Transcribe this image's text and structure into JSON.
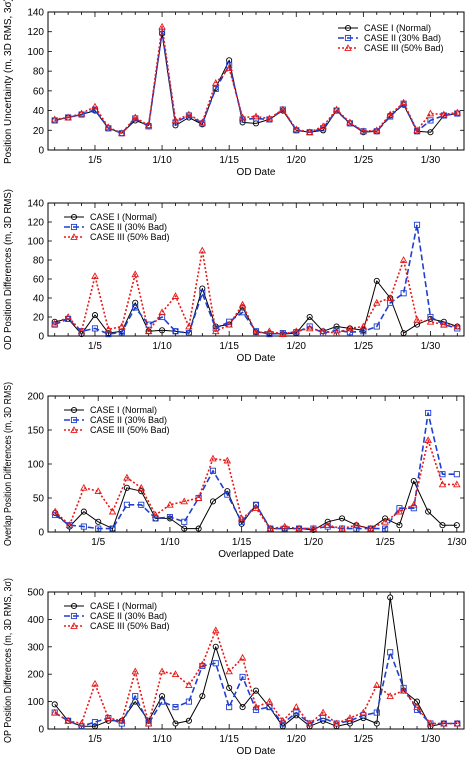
{
  "colors": {
    "case1": "#000000",
    "case2": "#1f3fd0",
    "case3": "#e81818",
    "axis": "#000000"
  },
  "chart_data": [
    {
      "type": "line",
      "title": "",
      "xlabel": "OD Date",
      "ylabel": "Position Uncertainty (m, 3D RMS, 3σ)",
      "xlim": [
        1.5,
        32.5
      ],
      "ylim": [
        0,
        140
      ],
      "yticks": [
        0,
        20,
        40,
        60,
        80,
        100,
        120,
        140
      ],
      "xticks": [
        5,
        10,
        15,
        20,
        25,
        30
      ],
      "xtick_labels": [
        "1/5",
        "1/10",
        "1/15",
        "1/20",
        "1/25",
        "1/30"
      ],
      "x": [
        2,
        3,
        4,
        5,
        6,
        7,
        8,
        9,
        10,
        11,
        12,
        13,
        14,
        15,
        16,
        17,
        18,
        19,
        20,
        21,
        22,
        23,
        24,
        25,
        26,
        27,
        28,
        29,
        30,
        31,
        32
      ],
      "legend_position": "top-right",
      "series": [
        {
          "name": "CASE I (Normal)",
          "style": "case1",
          "marker": "circle",
          "values": [
            30,
            33,
            36,
            40,
            22,
            17,
            30,
            25,
            118,
            25,
            33,
            26,
            63,
            91,
            28,
            27,
            31,
            40,
            20,
            18,
            20,
            40,
            27,
            18,
            19,
            35,
            46,
            19,
            18,
            35,
            37
          ]
        },
        {
          "name": "CASE II (30% Bad)",
          "style": "case2",
          "marker": "square",
          "values": [
            30,
            33,
            36,
            41,
            22,
            17,
            32,
            24,
            120,
            28,
            35,
            27,
            62,
            86,
            31,
            32,
            31,
            41,
            20,
            18,
            22,
            40,
            27,
            19,
            19,
            34,
            47,
            19,
            30,
            35,
            37
          ]
        },
        {
          "name": "CASE III (50% Bad)",
          "style": "case3",
          "marker": "triangle",
          "values": [
            31,
            33,
            37,
            44,
            23,
            17,
            33,
            25,
            125,
            30,
            36,
            28,
            68,
            83,
            33,
            34,
            32,
            41,
            21,
            18,
            24,
            41,
            28,
            19,
            20,
            36,
            48,
            20,
            37,
            36,
            38
          ]
        }
      ]
    },
    {
      "type": "line",
      "title": "",
      "xlabel": "OD Date",
      "ylabel": "OD Position Differences (m, 3D RMS)",
      "xlim": [
        1.5,
        32.5
      ],
      "ylim": [
        0,
        140
      ],
      "yticks": [
        0,
        20,
        40,
        60,
        80,
        100,
        120,
        140
      ],
      "xticks": [
        5,
        10,
        15,
        20,
        25,
        30
      ],
      "xtick_labels": [
        "1/5",
        "1/10",
        "1/15",
        "1/20",
        "1/25",
        "1/30"
      ],
      "x": [
        2,
        3,
        4,
        5,
        6,
        7,
        8,
        9,
        10,
        11,
        12,
        13,
        14,
        15,
        16,
        17,
        18,
        19,
        20,
        21,
        22,
        23,
        24,
        25,
        26,
        27,
        28,
        29,
        30,
        31,
        32
      ],
      "legend_position": "top-left",
      "series": [
        {
          "name": "CASE I (Normal)",
          "style": "case1",
          "marker": "circle",
          "values": [
            15,
            18,
            2,
            22,
            3,
            5,
            35,
            5,
            6,
            5,
            3,
            50,
            10,
            12,
            30,
            4,
            3,
            2,
            3,
            20,
            5,
            10,
            8,
            6,
            58,
            40,
            3,
            12,
            18,
            15,
            10
          ]
        },
        {
          "name": "CASE II (30% Bad)",
          "style": "case2",
          "marker": "square",
          "values": [
            12,
            18,
            5,
            8,
            2,
            4,
            30,
            12,
            20,
            5,
            3,
            45,
            8,
            15,
            25,
            5,
            2,
            3,
            4,
            10,
            3,
            6,
            4,
            5,
            10,
            35,
            45,
            117,
            20,
            12,
            8
          ]
        },
        {
          "name": "CASE III (50% Bad)",
          "style": "case3",
          "marker": "triangle",
          "values": [
            13,
            20,
            5,
            63,
            7,
            10,
            65,
            5,
            25,
            42,
            10,
            90,
            5,
            12,
            33,
            3,
            5,
            2,
            5,
            8,
            5,
            3,
            8,
            10,
            35,
            40,
            80,
            17,
            15,
            12,
            10
          ]
        }
      ]
    },
    {
      "type": "line",
      "title": "",
      "xlabel": "Overlapped Date",
      "ylabel": "Overlap Position Differences (m, 3D RMS)",
      "xlim": [
        1.5,
        30.5
      ],
      "ylim": [
        0,
        200
      ],
      "yticks": [
        0,
        50,
        100,
        150,
        200
      ],
      "xticks": [
        5,
        10,
        15,
        20,
        25,
        30
      ],
      "xtick_labels": [
        "1/5",
        "1/10",
        "1/15",
        "1/20",
        "1/25",
        "1/30"
      ],
      "x": [
        2,
        3,
        4,
        5,
        6,
        7,
        8,
        9,
        10,
        11,
        12,
        13,
        14,
        15,
        16,
        17,
        18,
        19,
        20,
        21,
        22,
        23,
        24,
        25,
        26,
        27,
        28,
        29,
        30
      ],
      "legend_position": "top-left",
      "series": [
        {
          "name": "CASE I (Normal)",
          "style": "case1",
          "marker": "circle",
          "values": [
            28,
            8,
            30,
            15,
            5,
            65,
            60,
            20,
            20,
            5,
            5,
            45,
            60,
            12,
            40,
            5,
            5,
            5,
            3,
            15,
            20,
            10,
            5,
            20,
            10,
            75,
            30,
            10,
            10
          ]
        },
        {
          "name": "CASE II (30% Bad)",
          "style": "case2",
          "marker": "square",
          "values": [
            25,
            10,
            8,
            5,
            5,
            40,
            40,
            20,
            22,
            15,
            50,
            90,
            55,
            15,
            40,
            5,
            5,
            5,
            5,
            8,
            5,
            5,
            5,
            5,
            35,
            35,
            175,
            85,
            85
          ]
        },
        {
          "name": "CASE III (50% Bad)",
          "style": "case3",
          "marker": "triangle",
          "values": [
            30,
            10,
            65,
            60,
            30,
            80,
            65,
            25,
            40,
            45,
            50,
            108,
            105,
            20,
            35,
            5,
            8,
            5,
            5,
            10,
            5,
            10,
            5,
            15,
            30,
            40,
            135,
            70,
            70
          ]
        }
      ]
    },
    {
      "type": "line",
      "title": "",
      "xlabel": "OD Date",
      "ylabel": "OP Position Differences (m, 3D RMS, 3σ)",
      "xlim": [
        1.5,
        32.5
      ],
      "ylim": [
        0,
        500
      ],
      "yticks": [
        0,
        100,
        200,
        300,
        400,
        500
      ],
      "xticks": [
        5,
        10,
        15,
        20,
        25,
        30
      ],
      "xtick_labels": [
        "1/5",
        "1/10",
        "1/15",
        "1/20",
        "1/25",
        "1/30"
      ],
      "x": [
        2,
        3,
        4,
        5,
        6,
        7,
        8,
        9,
        10,
        11,
        12,
        13,
        14,
        15,
        16,
        17,
        18,
        19,
        20,
        21,
        22,
        23,
        24,
        25,
        26,
        27,
        28,
        29,
        30,
        31,
        32
      ],
      "legend_position": "top-left",
      "series": [
        {
          "name": "CASE I (Normal)",
          "style": "case1",
          "marker": "circle",
          "values": [
            90,
            30,
            10,
            10,
            30,
            30,
            100,
            30,
            120,
            20,
            30,
            120,
            300,
            150,
            80,
            140,
            80,
            10,
            50,
            10,
            30,
            10,
            20,
            40,
            20,
            480,
            140,
            100,
            10,
            20,
            20
          ]
        },
        {
          "name": "CASE II (30% Bad)",
          "style": "case2",
          "marker": "square",
          "values": [
            60,
            30,
            10,
            25,
            40,
            20,
            120,
            20,
            100,
            80,
            100,
            230,
            240,
            80,
            190,
            70,
            80,
            20,
            60,
            20,
            40,
            20,
            30,
            50,
            60,
            280,
            150,
            70,
            20,
            20,
            20
          ]
        },
        {
          "name": "CASE III (50% Bad)",
          "style": "case3",
          "marker": "triangle",
          "values": [
            60,
            30,
            20,
            165,
            40,
            30,
            210,
            20,
            210,
            200,
            160,
            235,
            360,
            210,
            260,
            80,
            100,
            30,
            80,
            20,
            60,
            20,
            40,
            60,
            160,
            120,
            140,
            80,
            20,
            20,
            20
          ]
        }
      ]
    }
  ]
}
